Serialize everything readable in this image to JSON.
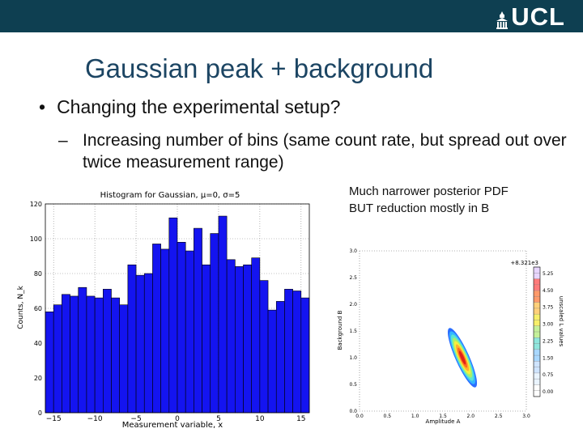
{
  "header": {
    "logo_text": "UCL",
    "colors": {
      "bar": "#0e3f51",
      "text": "#ffffff"
    }
  },
  "slide": {
    "title": "Gaussian peak + background",
    "bullet_marker": "•",
    "bullet": "Changing the experimental setup?",
    "sub_marker": "–",
    "sub_bullet": "Increasing number of bins (same count rate, but spread out over twice measurement range)",
    "note_line1": "Much narrower posterior PDF",
    "note_line2": "BUT reduction mostly in B"
  },
  "chart_data": [
    {
      "type": "bar",
      "title": "Histogram for Gaussian, μ=0, σ=5",
      "xlabel": "Measurement variable, x",
      "ylabel": "Counts, N_k",
      "xlim": [
        -16,
        16
      ],
      "ylim": [
        0,
        120
      ],
      "xticks": [
        "−15",
        "−10",
        "−5",
        "0",
        "5",
        "10",
        "15"
      ],
      "yticks": [
        "0",
        "20",
        "40",
        "60",
        "80",
        "100",
        "120"
      ],
      "bar_color": "#1414f0",
      "bin_edges_start": -16,
      "bin_width": 1,
      "values": [
        58,
        62,
        68,
        67,
        72,
        67,
        66,
        71,
        66,
        62,
        85,
        79,
        80,
        97,
        94,
        112,
        98,
        93,
        106,
        85,
        103,
        113,
        88,
        84,
        85,
        89,
        76,
        59,
        64,
        71,
        70,
        66
      ]
    },
    {
      "type": "heatmap",
      "xlabel": "Amplitude A",
      "ylabel": "Background B",
      "xlim": [
        0.0,
        3.0
      ],
      "ylim": [
        0.0,
        3.0
      ],
      "xticks": [
        "0.0",
        "0.5",
        "1.0",
        "1.5",
        "2.0",
        "2.5",
        "3.0"
      ],
      "yticks": [
        "0.0",
        "0.5",
        "1.0",
        "1.5",
        "2.0",
        "2.5",
        "3.0"
      ],
      "offset_label": "+8.321e3",
      "colorbar_label": "unscaled L values",
      "colorbar_ticks": [
        "5.25",
        "4.50",
        "3.75",
        "3.00",
        "2.25",
        "1.50",
        "0.75",
        "0.00"
      ],
      "peak": {
        "A": 1.85,
        "B": 1.0
      }
    }
  ]
}
